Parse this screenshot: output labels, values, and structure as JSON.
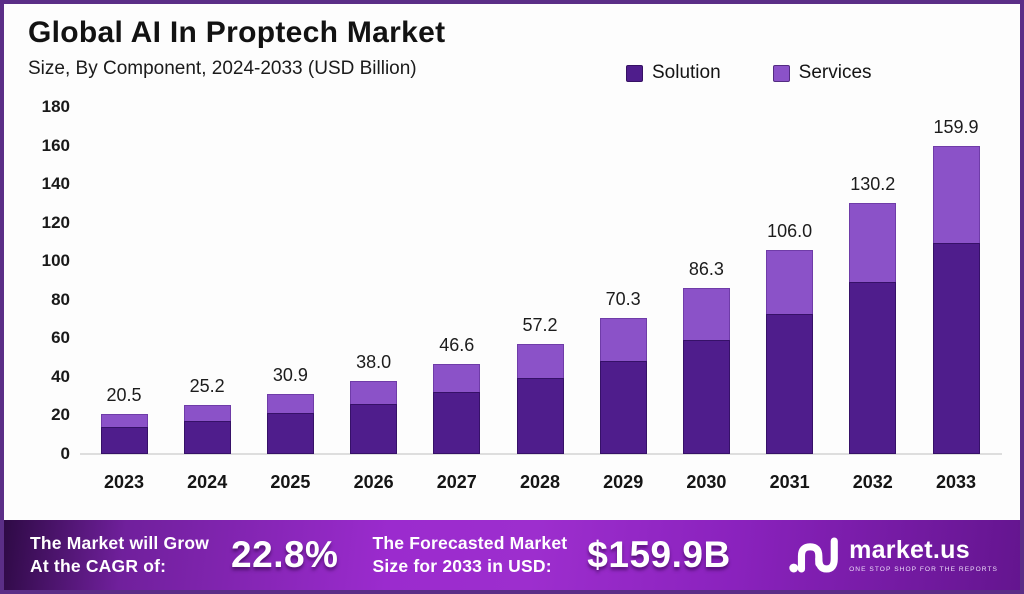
{
  "header": {
    "title": "Global AI In Proptech Market",
    "subtitle": "Size, By Component, 2024-2033 (USD Billion)"
  },
  "legend": [
    {
      "label": "Solution",
      "color": "#4f1d8c"
    },
    {
      "label": "Services",
      "color": "#8b52c8"
    }
  ],
  "chart_data": {
    "type": "bar",
    "stacked": true,
    "title": "Global AI In Proptech Market Size, By Component, 2024-2033 (USD Billion)",
    "categories": [
      "2023",
      "2024",
      "2025",
      "2026",
      "2027",
      "2028",
      "2029",
      "2030",
      "2031",
      "2032",
      "2033"
    ],
    "series": [
      {
        "name": "Solution",
        "color": "#4f1d8c",
        "values": [
          14.1,
          17.3,
          21.2,
          26.0,
          31.9,
          39.2,
          48.2,
          59.1,
          72.6,
          89.2,
          109.5
        ]
      },
      {
        "name": "Services",
        "color": "#8b52c8",
        "values": [
          6.4,
          7.9,
          9.7,
          12.0,
          14.7,
          18.0,
          22.1,
          27.2,
          33.4,
          41.0,
          50.4
        ]
      }
    ],
    "totals": [
      20.5,
      25.2,
      30.9,
      38.0,
      46.6,
      57.2,
      70.3,
      86.3,
      106.0,
      130.2,
      159.9
    ],
    "total_labels": [
      "20.5",
      "25.2",
      "30.9",
      "38.0",
      "46.6",
      "57.2",
      "70.3",
      "86.3",
      "106.0",
      "130.2",
      "159.9"
    ],
    "ylim": [
      0,
      180
    ],
    "ytick_step": 20,
    "grid": false,
    "legend_position": "top-right",
    "xlabel": "",
    "ylabel": ""
  },
  "footer": {
    "cagr_label_line1": "The Market will Grow",
    "cagr_label_line2": "At the CAGR of:",
    "cagr_value": "22.8%",
    "forecast_label_line1": "The Forecasted Market",
    "forecast_label_line2": "Size for 2033 in USD:",
    "forecast_value": "$159.9B",
    "logo_name": "market.us",
    "logo_tagline": "ONE STOP SHOP FOR THE REPORTS"
  },
  "colors": {
    "solution": "#4f1d8c",
    "services": "#8b52c8",
    "border": "#5b2e87",
    "footer_gradient_start": "#2e0a45",
    "footer_gradient_mid": "#9d2ece",
    "footer_gradient_end": "#64158f"
  }
}
